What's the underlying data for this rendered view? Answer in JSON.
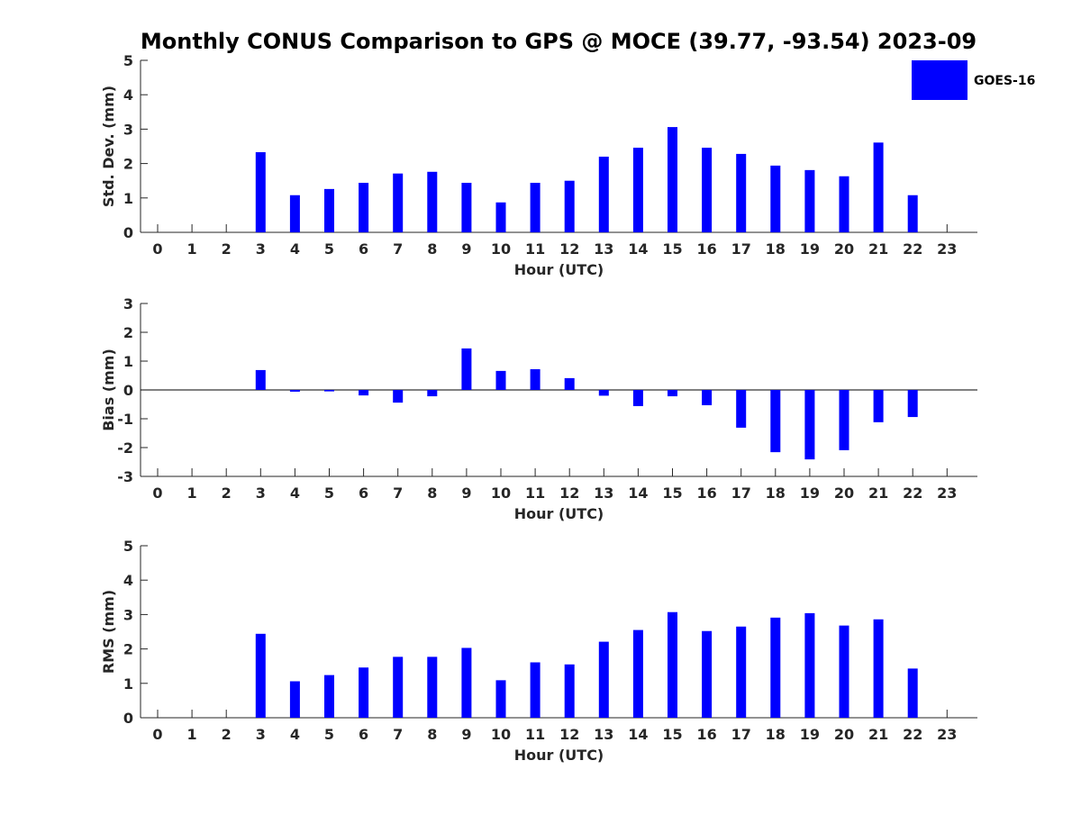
{
  "title": "Monthly CONUS Comparison to GPS @ MOCE (39.77, -93.54) 2023-09",
  "legend": {
    "label": "GOES-16",
    "color": "#0000ff"
  },
  "chart_data": [
    {
      "type": "bar",
      "id": "stddev",
      "series_name": "GOES-16",
      "color": "#0000ff",
      "xlabel": "Hour (UTC)",
      "ylabel": "Std. Dev. (mm)",
      "ylim": [
        0,
        5
      ],
      "yticks": [
        0,
        1,
        2,
        3,
        4,
        5
      ],
      "categories": [
        "0",
        "1",
        "2",
        "3",
        "4",
        "5",
        "6",
        "7",
        "8",
        "9",
        "10",
        "11",
        "12",
        "13",
        "14",
        "15",
        "16",
        "17",
        "18",
        "19",
        "20",
        "21",
        "22",
        "23"
      ],
      "values": [
        null,
        null,
        null,
        2.33,
        1.08,
        1.26,
        1.44,
        1.71,
        1.76,
        1.44,
        0.87,
        1.44,
        1.5,
        2.2,
        2.46,
        3.06,
        2.46,
        2.28,
        1.94,
        1.81,
        1.63,
        2.61,
        1.08,
        null
      ]
    },
    {
      "type": "bar",
      "id": "bias",
      "series_name": "GOES-16",
      "color": "#0000ff",
      "xlabel": "Hour (UTC)",
      "ylabel": "Bias (mm)",
      "ylim": [
        -3,
        3
      ],
      "yticks": [
        -3,
        -2,
        -1,
        0,
        1,
        2,
        3
      ],
      "categories": [
        "0",
        "1",
        "2",
        "3",
        "4",
        "5",
        "6",
        "7",
        "8",
        "9",
        "10",
        "11",
        "12",
        "13",
        "14",
        "15",
        "16",
        "17",
        "18",
        "19",
        "20",
        "21",
        "22",
        "23"
      ],
      "values": [
        null,
        null,
        null,
        0.69,
        -0.06,
        -0.05,
        -0.19,
        -0.44,
        -0.22,
        1.44,
        0.66,
        0.72,
        0.41,
        -0.2,
        -0.56,
        -0.22,
        -0.53,
        -1.31,
        -2.16,
        -2.41,
        -2.09,
        -1.12,
        -0.94,
        null
      ]
    },
    {
      "type": "bar",
      "id": "rms",
      "series_name": "GOES-16",
      "color": "#0000ff",
      "xlabel": "Hour (UTC)",
      "ylabel": "RMS (mm)",
      "ylim": [
        0,
        5
      ],
      "yticks": [
        0,
        1,
        2,
        3,
        4,
        5
      ],
      "categories": [
        "0",
        "1",
        "2",
        "3",
        "4",
        "5",
        "6",
        "7",
        "8",
        "9",
        "10",
        "11",
        "12",
        "13",
        "14",
        "15",
        "16",
        "17",
        "18",
        "19",
        "20",
        "21",
        "22",
        "23"
      ],
      "values": [
        null,
        null,
        null,
        2.44,
        1.06,
        1.24,
        1.46,
        1.77,
        1.77,
        2.03,
        1.09,
        1.61,
        1.55,
        2.21,
        2.55,
        3.07,
        2.52,
        2.65,
        2.91,
        3.04,
        2.68,
        2.86,
        1.43,
        null
      ]
    }
  ]
}
